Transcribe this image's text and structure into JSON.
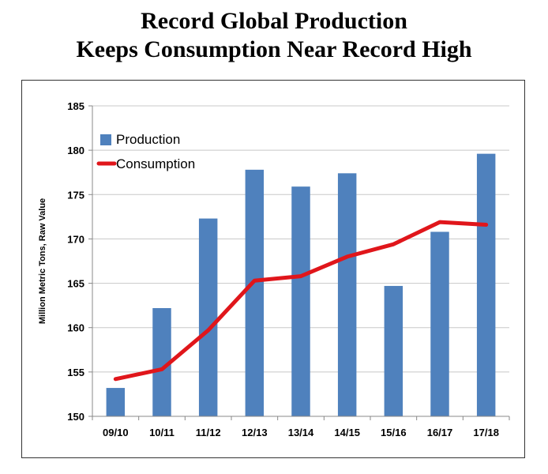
{
  "title_line1": "Record Global Production",
  "title_line2": "Keeps Consumption Near Record High",
  "colors": {
    "production": "#4f81bd",
    "consumption": "#e0161b",
    "grid": "#c8c8c8",
    "axis": "#888888"
  },
  "chart_data": {
    "type": "bar",
    "title": "Record Global Production Keeps Consumption Near Record High",
    "xlabel": "",
    "ylabel": "Million Metric Tons, Raw Value",
    "ylim": [
      150,
      185
    ],
    "yticks": [
      150,
      155,
      160,
      165,
      170,
      175,
      180,
      185
    ],
    "categories": [
      "09/10",
      "10/11",
      "11/12",
      "12/13",
      "13/14",
      "14/15",
      "15/16",
      "16/17",
      "17/18"
    ],
    "legend_position": "top-left",
    "grid": true,
    "series": [
      {
        "name": "Production",
        "type": "bar",
        "values": [
          153.2,
          162.2,
          172.3,
          177.8,
          175.9,
          177.4,
          164.7,
          170.8,
          179.6
        ]
      },
      {
        "name": "Consumption",
        "type": "line",
        "values": [
          154.2,
          155.3,
          159.7,
          165.3,
          165.8,
          168.0,
          169.4,
          171.9,
          171.6
        ]
      }
    ]
  }
}
